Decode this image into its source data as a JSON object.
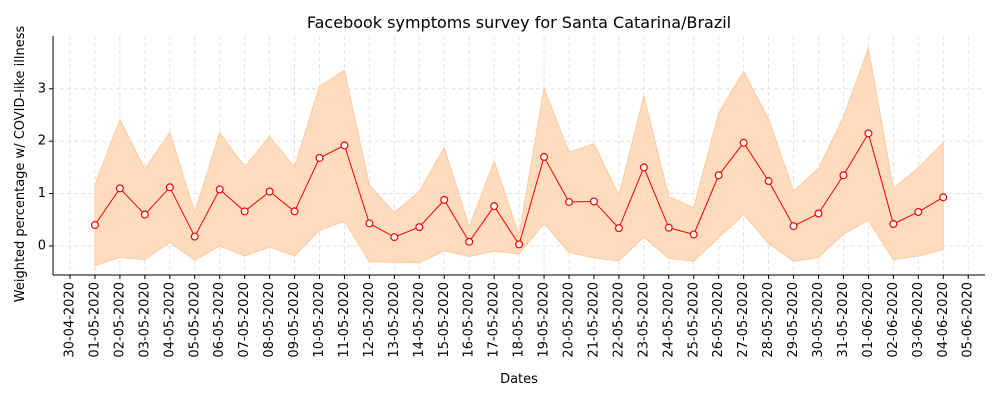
{
  "chart_data": {
    "type": "line",
    "title": "Facebook symptoms survey for Santa Catarina/Brazil",
    "xlabel": "Dates",
    "ylabel": "Weighted percentage w/ COVID-like illness",
    "x_ticks": [
      "30-04-2020",
      "01-05-2020",
      "02-05-2020",
      "03-05-2020",
      "04-05-2020",
      "05-05-2020",
      "06-05-2020",
      "07-05-2020",
      "08-05-2020",
      "09-05-2020",
      "10-05-2020",
      "11-05-2020",
      "12-05-2020",
      "13-05-2020",
      "14-05-2020",
      "15-05-2020",
      "16-05-2020",
      "17-05-2020",
      "18-05-2020",
      "19-05-2020",
      "20-05-2020",
      "21-05-2020",
      "22-05-2020",
      "23-05-2020",
      "24-05-2020",
      "25-05-2020",
      "26-05-2020",
      "27-05-2020",
      "28-05-2020",
      "29-05-2020",
      "30-05-2020",
      "31-05-2020",
      "01-06-2020",
      "02-06-2020",
      "03-06-2020",
      "04-06-2020",
      "05-06-2020"
    ],
    "y_ticks": [
      0,
      1,
      2,
      3
    ],
    "ylim": [
      -0.55,
      4.0
    ],
    "grid": true,
    "x": [
      "01-05-2020",
      "02-05-2020",
      "03-05-2020",
      "04-05-2020",
      "05-05-2020",
      "06-05-2020",
      "07-05-2020",
      "08-05-2020",
      "09-05-2020",
      "10-05-2020",
      "11-05-2020",
      "12-05-2020",
      "13-05-2020",
      "14-05-2020",
      "15-05-2020",
      "16-05-2020",
      "17-05-2020",
      "18-05-2020",
      "19-05-2020",
      "20-05-2020",
      "21-05-2020",
      "22-05-2020",
      "23-05-2020",
      "24-05-2020",
      "25-05-2020",
      "26-05-2020",
      "27-05-2020",
      "28-05-2020",
      "29-05-2020",
      "30-05-2020",
      "31-05-2020",
      "01-06-2020",
      "02-06-2020",
      "03-06-2020",
      "04-06-2020"
    ],
    "series": [
      {
        "values": [
          0.4,
          1.1,
          0.6,
          1.12,
          0.18,
          1.08,
          0.66,
          1.04,
          0.66,
          1.68,
          1.92,
          0.43,
          0.17,
          0.36,
          0.88,
          0.08,
          0.76,
          0.03,
          1.7,
          0.84,
          0.85,
          0.34,
          1.5,
          0.35,
          0.22,
          1.35,
          1.97,
          1.24,
          0.38,
          0.62,
          1.35,
          2.15,
          0.42,
          0.65,
          0.93
        ],
        "color": "#ff0000",
        "marker": "circle"
      }
    ],
    "band": {
      "lower": [
        -0.37,
        -0.22,
        -0.26,
        0.07,
        -0.27,
        0.0,
        -0.19,
        -0.02,
        -0.19,
        0.3,
        0.47,
        -0.3,
        -0.31,
        -0.32,
        -0.09,
        -0.2,
        -0.1,
        -0.15,
        0.43,
        -0.12,
        -0.23,
        -0.28,
        0.17,
        -0.24,
        -0.29,
        0.16,
        0.6,
        0.05,
        -0.29,
        -0.22,
        0.23,
        0.49,
        -0.26,
        -0.19,
        -0.07
      ],
      "upper": [
        1.17,
        2.41,
        1.47,
        2.17,
        0.64,
        2.16,
        1.51,
        2.09,
        1.51,
        3.05,
        3.35,
        1.16,
        0.64,
        1.04,
        1.88,
        0.36,
        1.62,
        0.21,
        3.01,
        1.79,
        1.95,
        0.97,
        2.86,
        0.94,
        0.73,
        2.54,
        3.33,
        2.42,
        1.05,
        1.48,
        2.46,
        3.77,
        1.1,
        1.49,
        1.97
      ],
      "color": "#ffdab9"
    }
  }
}
